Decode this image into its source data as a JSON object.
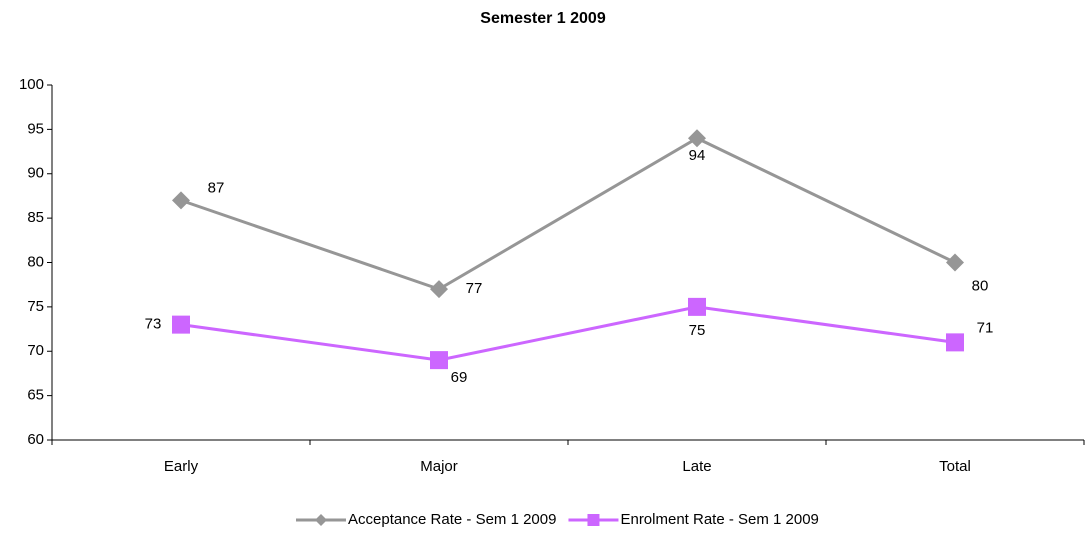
{
  "chart_data": {
    "type": "line",
    "title": "Semester 1 2009",
    "categories": [
      "Early",
      "Major",
      "Late",
      "Total"
    ],
    "series": [
      {
        "name": "Acceptance Rate - Sem 1 2009",
        "color": "#969696",
        "marker": "diamond",
        "values": [
          87,
          77,
          94,
          80
        ]
      },
      {
        "name": "Enrolment Rate - Sem 1 2009",
        "color": "#cc66ff",
        "marker": "square",
        "values": [
          73,
          69,
          75,
          71
        ]
      }
    ],
    "ylim": [
      60,
      100
    ],
    "yticks": [
      60,
      65,
      70,
      75,
      80,
      85,
      90,
      95,
      100
    ],
    "grid": false,
    "legend": "bottom"
  }
}
